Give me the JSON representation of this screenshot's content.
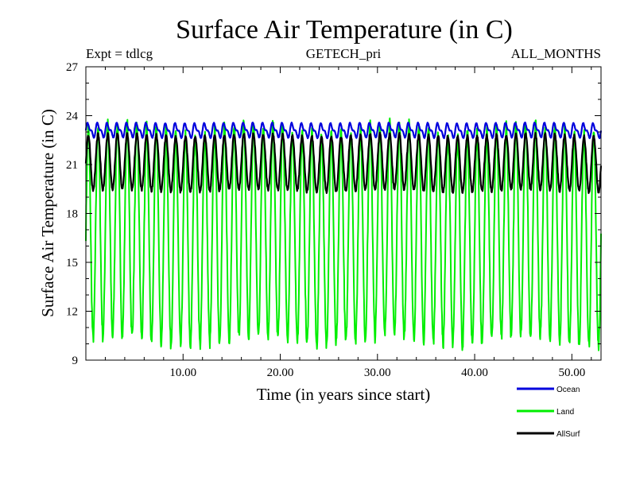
{
  "chart_data": {
    "type": "line",
    "title": "Surface Air Temperature (in C)",
    "subtitle_left": "Expt = tdlcg",
    "subtitle_center": "GETECH_pri",
    "subtitle_right": "ALL_MONTHS",
    "xlabel": "Time (in years since start)",
    "ylabel": "Surface Air Temperature (in C)",
    "xlim": [
      0,
      53
    ],
    "ylim": [
      9,
      27
    ],
    "x_ticks": [
      10,
      20,
      30,
      40,
      50
    ],
    "x_tick_labels": [
      "10.00",
      "20.00",
      "30.00",
      "40.00",
      "50.00"
    ],
    "y_ticks": [
      9,
      12,
      15,
      18,
      21,
      24,
      27
    ],
    "y_tick_labels": [
      "9",
      "12",
      "15",
      "18",
      "21",
      "24",
      "27"
    ],
    "grid": false,
    "legend_position": "bottom-right, below plot",
    "series": [
      {
        "name": "Ocean",
        "color": "#0000dd",
        "mean": 23.1,
        "amplitude": 0.35,
        "min": 22.6,
        "max": 23.9,
        "period_years": 1
      },
      {
        "name": "Land",
        "color": "#00ee00",
        "mean": 16.7,
        "amplitude": 6.5,
        "min": 9.3,
        "max": 24.5,
        "period_years": 1
      },
      {
        "name": "AllSurf",
        "color": "#000000",
        "mean": 21.1,
        "amplitude": 1.7,
        "min": 19.1,
        "max": 23.0,
        "period_years": 1
      }
    ]
  }
}
